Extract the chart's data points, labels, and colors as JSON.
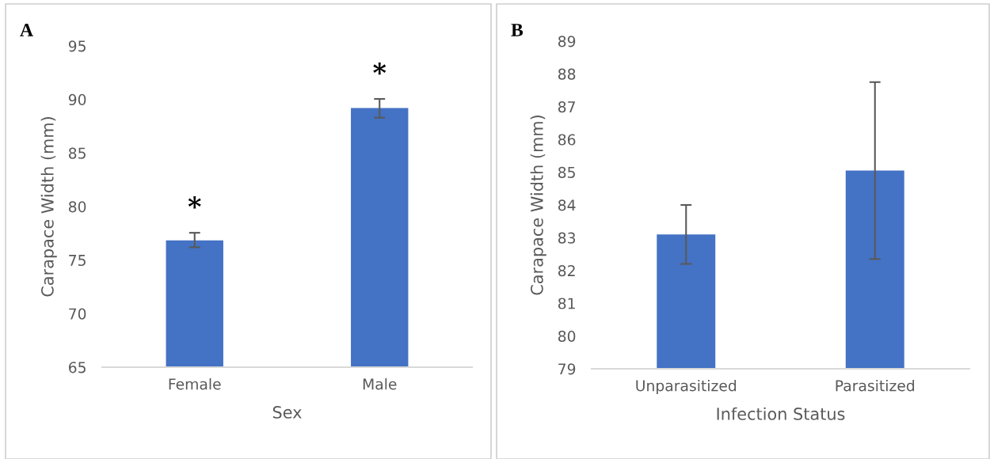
{
  "chart_data": [
    {
      "type": "bar",
      "categories": [
        "Female",
        "Male"
      ],
      "xlabel": "Sex",
      "ylabel": "Carapace Width (mm)",
      "values": [
        76.85,
        89.2
      ],
      "color": "#4472c4",
      "errors": [
        [
          76.2,
          77.55
        ],
        [
          88.3,
          90.05
        ]
      ],
      "ylim": [
        65,
        95
      ],
      "yticks": [
        65,
        70,
        75,
        80,
        85,
        90,
        95
      ],
      "grid": false,
      "legend": false,
      "annotations": [
        "A",
        "*",
        "*"
      ]
    },
    {
      "type": "bar",
      "categories": [
        "Unparasitized",
        "Parasitized"
      ],
      "xlabel": "Infection Status",
      "ylabel": "Carapace Width (mm)",
      "values": [
        83.1,
        85.05
      ],
      "color": "#4472c4",
      "errors": [
        [
          82.2,
          84.0
        ],
        [
          82.35,
          87.75
        ]
      ],
      "ylim": [
        79,
        89
      ],
      "yticks": [
        79,
        80,
        81,
        82,
        83,
        84,
        85,
        86,
        87,
        88,
        89
      ],
      "grid": false,
      "legend": false,
      "annotations": [
        "B"
      ]
    }
  ]
}
